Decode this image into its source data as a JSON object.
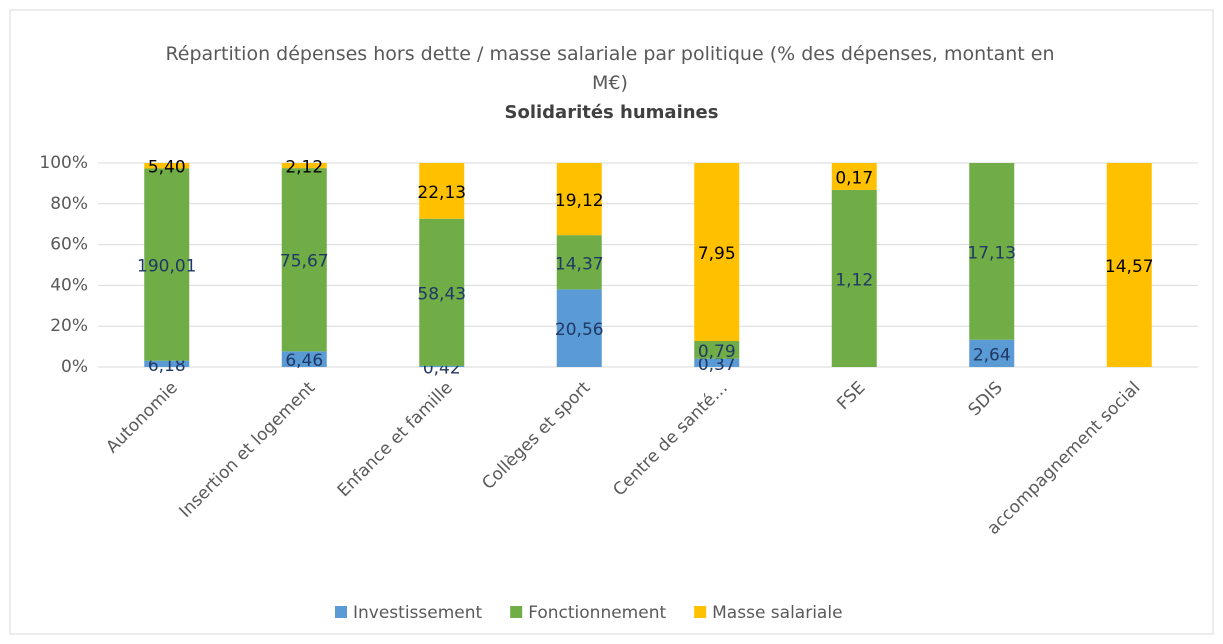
{
  "chart_data": {
    "type": "bar",
    "stack": "percent",
    "title": "Répartition dépenses hors dette / masse salariale par politique (% des dépenses, montant en M€)",
    "subtitle": "Solidarités humaines",
    "categories": [
      "Autonomie",
      "Insertion et logement",
      "Enfance et famille",
      "Collèges et sport",
      "Centre de santé…",
      "FSE",
      "SDIS",
      "accompagnement social"
    ],
    "series": [
      {
        "name": "Investissement",
        "color": "#5b9bd5",
        "label_color": "#1f3864",
        "values": [
          6.18,
          6.46,
          0.42,
          20.56,
          0.37,
          null,
          2.64,
          null
        ],
        "value_labels": [
          "6,18",
          "6,46",
          "0,42",
          "20,56",
          "0,37",
          null,
          "2,64",
          null
        ]
      },
      {
        "name": "Fonctionnement",
        "color": "#70ad47",
        "label_color": "#1f3864",
        "values": [
          190.01,
          75.67,
          58.43,
          14.37,
          0.79,
          1.12,
          17.13,
          null
        ],
        "value_labels": [
          "190,01",
          "75,67",
          "58,43",
          "14,37",
          "0,79",
          "1,12",
          "17,13",
          null
        ]
      },
      {
        "name": "Masse salariale",
        "color": "#ffc000",
        "label_color": "#000000",
        "values": [
          5.4,
          2.12,
          22.13,
          19.12,
          7.95,
          0.17,
          null,
          14.57
        ],
        "value_labels": [
          "5,40",
          "2,12",
          "22,13",
          "19,12",
          "7,95",
          "0,17",
          null,
          "14,57"
        ]
      }
    ],
    "ylim": [
      0,
      100
    ],
    "yticks": [
      {
        "value": 0,
        "label": "0%"
      },
      {
        "value": 20,
        "label": "20%"
      },
      {
        "value": 40,
        "label": "40%"
      },
      {
        "value": 60,
        "label": "60%"
      },
      {
        "value": 80,
        "label": "80%"
      },
      {
        "value": 100,
        "label": "100%"
      }
    ],
    "grid": true,
    "legend": "bottom"
  }
}
